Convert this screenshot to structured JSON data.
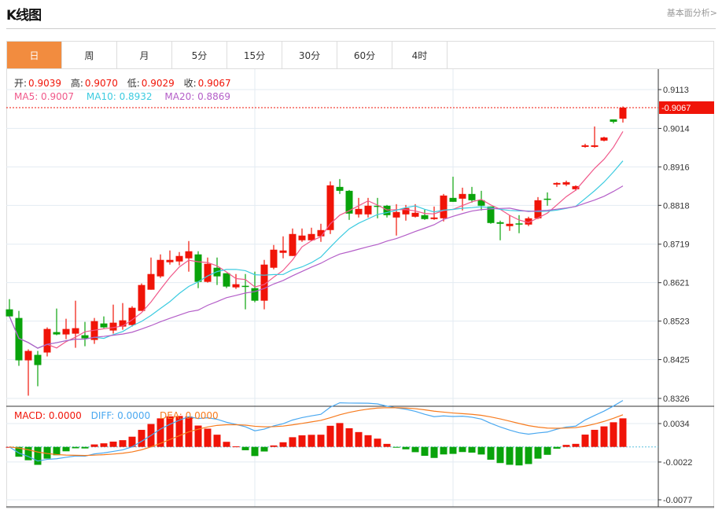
{
  "header": {
    "title": "K线图",
    "link": "基本面分析>"
  },
  "tabs": [
    {
      "label": "日",
      "active": true
    },
    {
      "label": "周"
    },
    {
      "label": "月"
    },
    {
      "label": "5分"
    },
    {
      "label": "15分"
    },
    {
      "label": "30分"
    },
    {
      "label": "60分"
    },
    {
      "label": "4时"
    }
  ],
  "ohlc": {
    "open_label": "开:",
    "open": "0.9039",
    "high_label": "高:",
    "high": "0.9070",
    "low_label": "低:",
    "low": "0.9029",
    "close_label": "收:",
    "close": "0.9067"
  },
  "ma": {
    "ma5_label": "MA5: 0.9007",
    "ma10_label": "MA10: 0.8932",
    "ma20_label": "MA20: 0.8869"
  },
  "macd": {
    "macd_label": "MACD: 0.0000",
    "diff_label": "DIFF: 0.0000",
    "dea_label": "DEA: 0.0000"
  },
  "colors": {
    "up": "#f01408",
    "down": "#09a30b",
    "ma5": "#f0588a",
    "ma10": "#3ccbe0",
    "ma20": "#b45ec8",
    "diff": "#4aa8f0",
    "dea": "#f77b1e",
    "tab_active": "#f28c3f"
  },
  "chart_data": {
    "type": "candlestick",
    "price_ticks": [
      "0.9113",
      "0.9014",
      "0.8916",
      "0.8818",
      "0.8719",
      "0.8621",
      "0.8523",
      "0.8425",
      "0.8326"
    ],
    "ylim": [
      0.8326,
      0.9113
    ],
    "current_price": "0.9067",
    "macd_ticks": [
      "0.0034",
      "-0.0022",
      "-0.0077"
    ],
    "macd_ylim": [
      -0.0077,
      0.0034
    ],
    "candles": [
      [
        0.8553,
        0.8579,
        0.8533,
        0.8535
      ],
      [
        0.8531,
        0.8549,
        0.8409,
        0.8423
      ],
      [
        0.8423,
        0.8451,
        0.8333,
        0.8447
      ],
      [
        0.8437,
        0.8447,
        0.8357,
        0.8411
      ],
      [
        0.8443,
        0.8507,
        0.8433,
        0.8503
      ],
      [
        0.8495,
        0.8555,
        0.8487,
        0.8489
      ],
      [
        0.8489,
        0.8529,
        0.8477,
        0.8503
      ],
      [
        0.8491,
        0.8575,
        0.8455,
        0.8505
      ],
      [
        0.8487,
        0.8521,
        0.8459,
        0.8479
      ],
      [
        0.8475,
        0.8531,
        0.8465,
        0.8523
      ],
      [
        0.8517,
        0.8535,
        0.8505,
        0.8507
      ],
      [
        0.8499,
        0.8565,
        0.8491,
        0.8519
      ],
      [
        0.8509,
        0.8569,
        0.8501,
        0.8525
      ],
      [
        0.8513,
        0.8561,
        0.8509,
        0.8557
      ],
      [
        0.8549,
        0.8619,
        0.8549,
        0.8615
      ],
      [
        0.8603,
        0.8685,
        0.8603,
        0.8643
      ],
      [
        0.8637,
        0.8693,
        0.8633,
        0.8679
      ],
      [
        0.8673,
        0.8703,
        0.8667,
        0.8679
      ],
      [
        0.8675,
        0.8699,
        0.8665,
        0.8689
      ],
      [
        0.8683,
        0.8727,
        0.8649,
        0.8701
      ],
      [
        0.8693,
        0.8701,
        0.8607,
        0.8623
      ],
      [
        0.8623,
        0.8685,
        0.8621,
        0.8669
      ],
      [
        0.8659,
        0.8685,
        0.8615,
        0.8637
      ],
      [
        0.8645,
        0.8645,
        0.8607,
        0.8611
      ],
      [
        0.8609,
        0.8643,
        0.8605,
        0.8617
      ],
      [
        0.8613,
        0.8643,
        0.8553,
        0.8611
      ],
      [
        0.8607,
        0.8649,
        0.8571,
        0.8575
      ],
      [
        0.8575,
        0.8679,
        0.8553,
        0.8667
      ],
      [
        0.8659,
        0.8717,
        0.8655,
        0.8705
      ],
      [
        0.8697,
        0.8739,
        0.8683,
        0.8703
      ],
      [
        0.8689,
        0.8759,
        0.8689,
        0.8745
      ],
      [
        0.8729,
        0.8759,
        0.8725,
        0.8741
      ],
      [
        0.8729,
        0.8761,
        0.8727,
        0.8745
      ],
      [
        0.8739,
        0.8771,
        0.8725,
        0.8755
      ],
      [
        0.8755,
        0.8879,
        0.8745,
        0.8869
      ],
      [
        0.8865,
        0.8885,
        0.8847,
        0.8855
      ],
      [
        0.8855,
        0.8857,
        0.8781,
        0.8797
      ],
      [
        0.8795,
        0.8837,
        0.8787,
        0.8809
      ],
      [
        0.8795,
        0.8837,
        0.8787,
        0.8817
      ],
      [
        0.8817,
        0.8837,
        0.8785,
        0.8815
      ],
      [
        0.8817,
        0.8819,
        0.8787,
        0.8793
      ],
      [
        0.8787,
        0.8821,
        0.8741,
        0.8801
      ],
      [
        0.8795,
        0.8819,
        0.8779,
        0.8811
      ],
      [
        0.8789,
        0.8821,
        0.8787,
        0.8799
      ],
      [
        0.8793,
        0.8807,
        0.8781,
        0.8783
      ],
      [
        0.8783,
        0.8815,
        0.8781,
        0.8787
      ],
      [
        0.8785,
        0.8847,
        0.8777,
        0.8843
      ],
      [
        0.8837,
        0.8891,
        0.8827,
        0.8827
      ],
      [
        0.8835,
        0.8863,
        0.8805,
        0.8847
      ],
      [
        0.8847,
        0.8865,
        0.8825,
        0.8831
      ],
      [
        0.8831,
        0.8855,
        0.8805,
        0.8817
      ],
      [
        0.8815,
        0.8815,
        0.8771,
        0.8773
      ],
      [
        0.8775,
        0.8779,
        0.8729,
        0.8771
      ],
      [
        0.8765,
        0.8793,
        0.8753,
        0.8771
      ],
      [
        0.8772,
        0.8793,
        0.8747,
        0.8771
      ],
      [
        0.8769,
        0.8789,
        0.8765,
        0.8785
      ],
      [
        0.8785,
        0.8839,
        0.8783,
        0.8831
      ],
      [
        0.8835,
        0.8851,
        0.8817,
        0.8833
      ],
      [
        0.8871,
        0.8877,
        0.8865,
        0.8875
      ],
      [
        0.8871,
        0.8881,
        0.8867,
        0.8877
      ],
      [
        0.8859,
        0.8869,
        0.8855,
        0.8867
      ],
      [
        0.8967,
        0.8975,
        0.8965,
        0.8971
      ],
      [
        0.8967,
        0.9019,
        0.8965,
        0.8971
      ],
      [
        0.8983,
        0.8993,
        0.8981,
        0.8991
      ],
      [
        0.9037,
        0.9037,
        0.9027,
        0.9031
      ],
      [
        0.9039,
        0.907,
        0.9029,
        0.9067
      ]
    ]
  }
}
